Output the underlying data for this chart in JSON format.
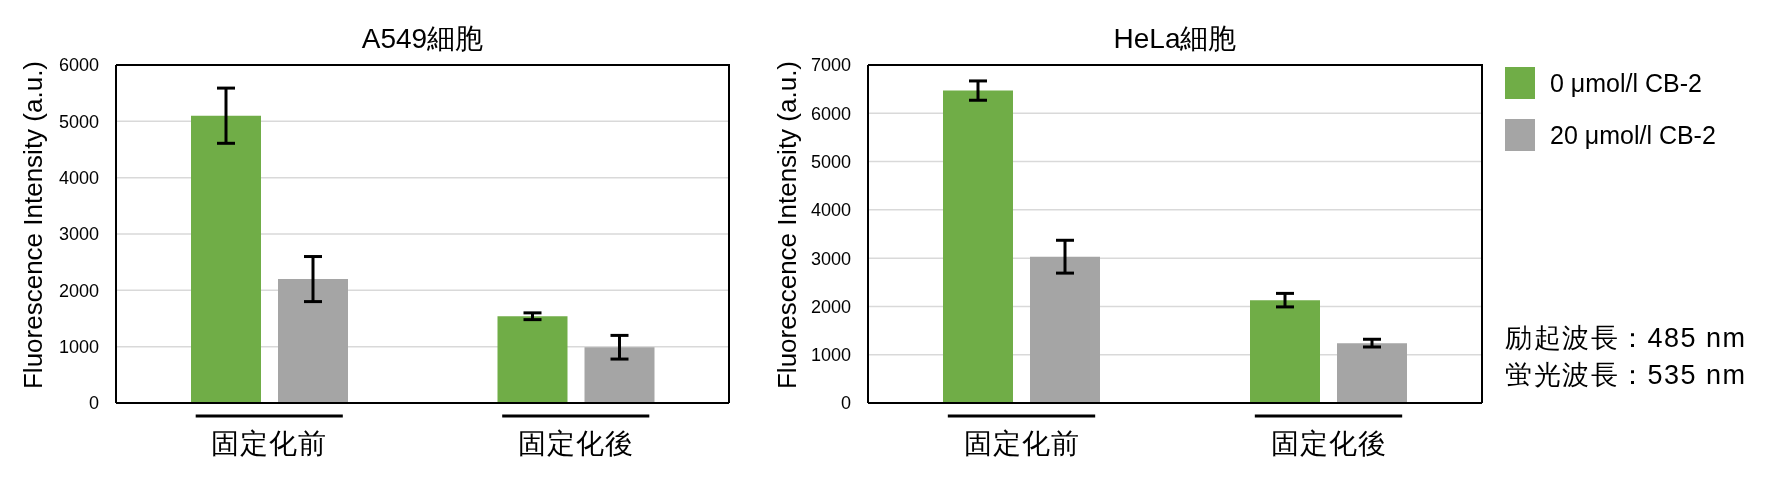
{
  "chart_data": [
    {
      "type": "bar",
      "title": "A549細胞",
      "ylabel": "Fluorescence Intensity (a.u.)",
      "categories": [
        "固定化前",
        "固定化後"
      ],
      "series": [
        {
          "color": "#70ad47",
          "values": [
            5100,
            1540
          ],
          "errors": [
            490,
            60
          ]
        },
        {
          "color": "#a5a5a5",
          "values": [
            2200,
            990
          ],
          "errors": [
            400,
            210
          ]
        }
      ],
      "ylim": [
        0,
        6000
      ],
      "yticks": [
        0,
        1000,
        2000,
        3000,
        4000,
        5000,
        6000
      ],
      "grid": "y"
    },
    {
      "type": "bar",
      "title": "HeLa細胞",
      "ylabel": "Fluorescence Intensity (a.u.)",
      "categories": [
        "固定化前",
        "固定化後"
      ],
      "series": [
        {
          "name": "0 μmol/l CB-2",
          "color": "#70ad47",
          "values": [
            6470,
            2130
          ],
          "errors": [
            200,
            140
          ]
        },
        {
          "name": "20 μmol/l CB-2",
          "color": "#a5a5a5",
          "values": [
            3030,
            1240
          ],
          "errors": [
            340,
            80
          ]
        }
      ],
      "ylim": [
        0,
        7000
      ],
      "yticks": [
        0,
        1000,
        2000,
        3000,
        4000,
        5000,
        6000,
        7000
      ],
      "grid": "y",
      "legend": "right",
      "annotations": [
        "励起波長：485 nm",
        "蛍光波長：535 nm"
      ]
    }
  ]
}
